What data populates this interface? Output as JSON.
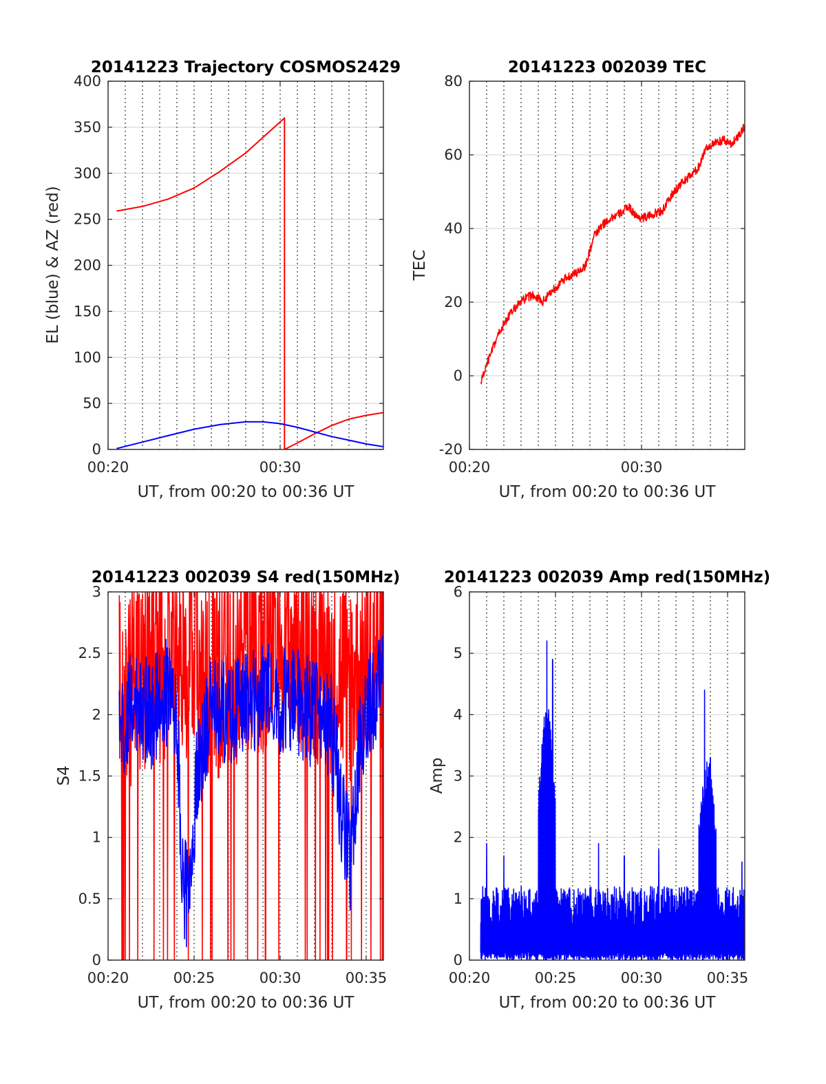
{
  "colors": {
    "red": "#ff0000",
    "blue": "#0000ff",
    "grid": "#d9d9d9",
    "axis": "#262626"
  },
  "chart_data": [
    {
      "id": "trajectory",
      "type": "line",
      "title": "20141223 Trajectory COSMOS2429",
      "xlabel": "UT, from 00:20 to 00:36 UT",
      "ylabel": "EL (blue) & AZ (red)",
      "xlim": [
        "00:20",
        "00:36"
      ],
      "ylim": [
        0,
        400
      ],
      "xticks": [
        "00:20",
        "00:30"
      ],
      "yticks": [
        0,
        50,
        100,
        150,
        200,
        250,
        300,
        350,
        400
      ],
      "grid": true,
      "minute_gridlines": "dotted, every minute",
      "series": [
        {
          "color": "red",
          "style": "smooth",
          "points": [
            [
              "00:20:30",
              259
            ],
            [
              "00:22:00",
              264
            ],
            [
              "00:23:30",
              272
            ],
            [
              "00:25:00",
              284
            ],
            [
              "00:26:30",
              302
            ],
            [
              "00:28:00",
              322
            ],
            [
              "00:29:00",
              339
            ],
            [
              "00:30:15",
              360
            ],
            [
              "00:30:15",
              0
            ],
            [
              "00:31:00",
              7
            ],
            [
              "00:32:00",
              17
            ],
            [
              "00:33:00",
              26
            ],
            [
              "00:34:00",
              33
            ],
            [
              "00:35:00",
              37
            ],
            [
              "00:36:00",
              40
            ]
          ]
        },
        {
          "color": "blue",
          "style": "smooth",
          "points": [
            [
              "00:20:30",
              1
            ],
            [
              "00:22:00",
              8
            ],
            [
              "00:23:30",
              15
            ],
            [
              "00:25:00",
              22
            ],
            [
              "00:26:30",
              27
            ],
            [
              "00:28:00",
              30
            ],
            [
              "00:29:00",
              30
            ],
            [
              "00:30:00",
              28
            ],
            [
              "00:31:00",
              24
            ],
            [
              "00:32:00",
              19
            ],
            [
              "00:33:00",
              14
            ],
            [
              "00:34:00",
              10
            ],
            [
              "00:35:00",
              6
            ],
            [
              "00:36:00",
              3
            ]
          ]
        }
      ]
    },
    {
      "id": "tec",
      "type": "line",
      "title": "20141223 002039 TEC",
      "xlabel": "UT, from 00:20 to 00:36 UT",
      "ylabel": "TEC",
      "xlim": [
        "00:20",
        "00:36"
      ],
      "ylim": [
        -20,
        80
      ],
      "xticks": [
        "00:20",
        "00:30"
      ],
      "yticks": [
        -20,
        0,
        20,
        40,
        60,
        80
      ],
      "grid": true,
      "minute_gridlines": "dotted, every minute",
      "series": [
        {
          "color": "red",
          "style": "noisy",
          "noise": 1.2,
          "points": [
            [
              "00:20:39",
              -2
            ],
            [
              "00:21:00",
              3
            ],
            [
              "00:21:45",
              12
            ],
            [
              "00:22:15",
              16
            ],
            [
              "00:22:45",
              19
            ],
            [
              "00:23:15",
              21
            ],
            [
              "00:23:45",
              22
            ],
            [
              "00:24:15",
              20
            ],
            [
              "00:24:45",
              23
            ],
            [
              "00:25:15",
              25
            ],
            [
              "00:25:45",
              27
            ],
            [
              "00:26:15",
              28
            ],
            [
              "00:26:45",
              30
            ],
            [
              "00:27:15",
              38
            ],
            [
              "00:27:45",
              41
            ],
            [
              "00:28:15",
              43
            ],
            [
              "00:28:45",
              44
            ],
            [
              "00:29:15",
              46
            ],
            [
              "00:29:45",
              43
            ],
            [
              "00:30:15",
              43
            ],
            [
              "00:30:45",
              44
            ],
            [
              "00:31:15",
              45
            ],
            [
              "00:31:45",
              49
            ],
            [
              "00:32:15",
              52
            ],
            [
              "00:32:45",
              54
            ],
            [
              "00:33:15",
              56
            ],
            [
              "00:33:45",
              62
            ],
            [
              "00:34:15",
              63
            ],
            [
              "00:34:45",
              64
            ],
            [
              "00:35:15",
              63
            ],
            [
              "00:35:45",
              66
            ],
            [
              "00:36:00",
              68
            ]
          ]
        }
      ]
    },
    {
      "id": "s4",
      "type": "line",
      "title": "20141223 002039 S4 red(150MHz)",
      "xlabel": "UT, from 00:20 to 00:36 UT",
      "ylabel": "S4",
      "xlim": [
        "00:20",
        "00:36"
      ],
      "ylim": [
        0,
        3
      ],
      "xticks": [
        "00:20",
        "00:25",
        "00:30",
        "00:35"
      ],
      "yticks": [
        0,
        0.5,
        1,
        1.5,
        2,
        2.5,
        3
      ],
      "grid": true,
      "minute_gridlines": "dotted, every minute",
      "series": [
        {
          "color": "red",
          "style": "noisy-clipped",
          "noise": 0.9,
          "drops_to_zero": true,
          "points": [
            [
              "00:20:39",
              2.2
            ],
            [
              "00:22:00",
              2.4
            ],
            [
              "00:24:00",
              2.6
            ],
            [
              "00:26:00",
              2.3
            ],
            [
              "00:28:00",
              2.5
            ],
            [
              "00:30:00",
              2.6
            ],
            [
              "00:32:00",
              2.5
            ],
            [
              "00:34:00",
              2.3
            ],
            [
              "00:36:00",
              2.6
            ]
          ]
        },
        {
          "color": "blue",
          "style": "noisy-clipped",
          "noise": 0.45,
          "points": [
            [
              "00:20:39",
              1.9
            ],
            [
              "00:21:30",
              2.1
            ],
            [
              "00:22:30",
              2.0
            ],
            [
              "00:23:30",
              2.2
            ],
            [
              "00:24:00",
              2.0
            ],
            [
              "00:24:20",
              0.55
            ],
            [
              "00:24:50",
              0.5
            ],
            [
              "00:25:10",
              1.6
            ],
            [
              "00:26:00",
              2.0
            ],
            [
              "00:27:00",
              2.0
            ],
            [
              "00:28:00",
              2.1
            ],
            [
              "00:29:00",
              2.2
            ],
            [
              "00:30:00",
              2.1
            ],
            [
              "00:31:00",
              2.1
            ],
            [
              "00:32:00",
              2.0
            ],
            [
              "00:33:00",
              1.9
            ],
            [
              "00:33:40",
              1.1
            ],
            [
              "00:34:10",
              0.8
            ],
            [
              "00:34:40",
              1.9
            ],
            [
              "00:35:30",
              2.2
            ],
            [
              "00:36:00",
              2.2
            ]
          ]
        }
      ]
    },
    {
      "id": "amp",
      "type": "line",
      "title": "20141223 002039 Amp red(150MHz)",
      "xlabel": "UT, from 00:20 to 00:36 UT",
      "ylabel": "Amp",
      "xlim": [
        "00:20",
        "00:36"
      ],
      "ylim": [
        0,
        6
      ],
      "xticks": [
        "00:20",
        "00:25",
        "00:30",
        "00:35"
      ],
      "yticks": [
        0,
        1,
        2,
        3,
        4,
        5,
        6
      ],
      "grid": true,
      "minute_gridlines": "dotted, every minute",
      "series": [
        {
          "color": "blue",
          "style": "dense-spikes",
          "baseline": 0.5,
          "spread": 0.7,
          "start": "00:20:39",
          "end": "00:36:00",
          "peaks": [
            [
              "00:21:00",
              1.9
            ],
            [
              "00:22:00",
              1.7
            ],
            [
              "00:24:30",
              5.2
            ],
            [
              "00:24:50",
              4.9
            ],
            [
              "00:27:30",
              1.9
            ],
            [
              "00:29:00",
              1.7
            ],
            [
              "00:31:00",
              1.8
            ],
            [
              "00:33:40",
              4.4
            ],
            [
              "00:34:00",
              3.3
            ],
            [
              "00:35:50",
              1.6
            ]
          ],
          "bursts": [
            [
              "00:24:00",
              "00:25:00",
              3.5
            ],
            [
              "00:33:20",
              "00:34:20",
              2.6
            ]
          ]
        }
      ]
    }
  ]
}
